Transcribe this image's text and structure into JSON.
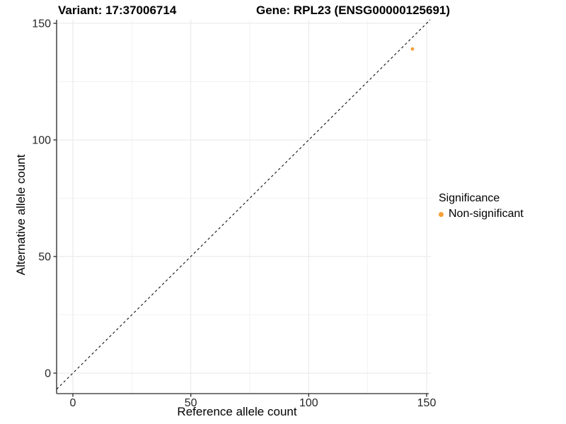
{
  "titles": {
    "variant": "Variant: 17:37006714",
    "gene": "Gene: RPL23 (ENSG00000125691)"
  },
  "chart_data": {
    "type": "scatter",
    "title": "Variant: 17:37006714   Gene: RPL23 (ENSG00000125691)",
    "xlabel": "Reference allele count",
    "ylabel": "Alternative allele count",
    "xlim": [
      0,
      150
    ],
    "ylim": [
      0,
      150
    ],
    "x_ticks": [
      0,
      50,
      100,
      150
    ],
    "y_ticks": [
      0,
      50,
      100,
      150
    ],
    "x_minor_ticks": [
      25,
      75,
      125
    ],
    "y_minor_ticks": [
      25,
      75,
      125
    ],
    "grid": true,
    "legend_title": "Significance",
    "legend_position": "right",
    "identity_line": {
      "type": "y=x",
      "style": "dashed",
      "color": "#111111"
    },
    "series": [
      {
        "name": "Non-significant",
        "color": "#F89F35",
        "points": [
          {
            "x": 144,
            "y": 139
          }
        ]
      }
    ]
  },
  "colors": {
    "accent_orange": "#F89F35",
    "grid_major": "#E7E7E7",
    "grid_minor": "#F2F2F2",
    "axis_line": "#4d4d4d",
    "tick_mark": "#333333",
    "tick_label": "#262626"
  }
}
